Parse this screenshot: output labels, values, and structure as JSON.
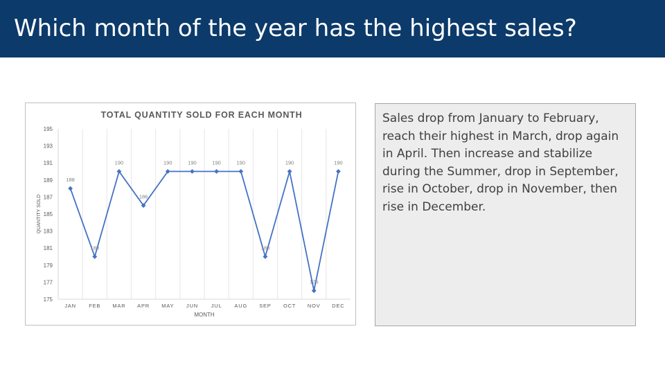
{
  "slide": {
    "title": "Which month of the year has the highest sales?",
    "note": "Sales drop from January to February, reach their highest in March, drop again in April. Then increase and stabilize during the Summer, drop in September, rise in October, drop in November, then rise in December."
  },
  "colors": {
    "title_bar": "#0c3a6a",
    "line": "#4472c4",
    "note_bg": "#ededed"
  },
  "chart_data": {
    "type": "line",
    "title": "TOTAL QUANTITY SOLD FOR EACH MONTH",
    "xlabel": "MONTH",
    "ylabel": "QUANTITY SOLD",
    "categories": [
      "JAN",
      "FEB",
      "MAR",
      "APR",
      "MAY",
      "JUN",
      "JUL",
      "AUG",
      "SEP",
      "OCT",
      "NOV",
      "DEC"
    ],
    "series": [
      {
        "values": [
          188,
          180,
          190,
          186,
          190,
          190,
          190,
          190,
          180,
          190,
          176,
          190
        ],
        "color": "#4472c4"
      }
    ],
    "ylim": [
      175,
      195
    ],
    "yticks": [
      175,
      177,
      179,
      181,
      183,
      185,
      187,
      189,
      191,
      193,
      195
    ],
    "data_labels": [
      "188",
      "180",
      "190",
      "186",
      "190",
      "190",
      "190",
      "190",
      "180",
      "190",
      "176",
      "190"
    ],
    "grid": "vertical",
    "legend": "none"
  }
}
